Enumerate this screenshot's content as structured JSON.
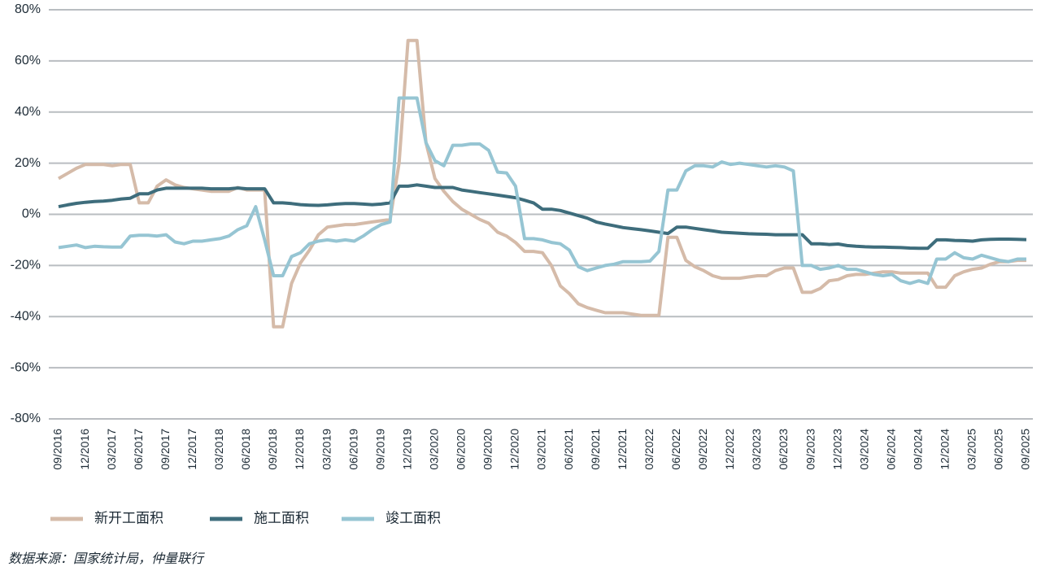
{
  "chart_data": {
    "type": "line",
    "categories": [
      "09/2016",
      null,
      null,
      "12/2016",
      null,
      null,
      "03/2017",
      null,
      null,
      "06/2017",
      null,
      null,
      "09/2017",
      null,
      null,
      "12/2017",
      null,
      null,
      "03/2018",
      null,
      null,
      "06/2018",
      null,
      null,
      "09/2018",
      null,
      null,
      "12/2018",
      null,
      null,
      "03/2019",
      null,
      null,
      "06/2019",
      null,
      null,
      "09/2019",
      null,
      null,
      "12/2019",
      null,
      null,
      "03/2020",
      null,
      null,
      "06/2020",
      null,
      null,
      "09/2020",
      null,
      null,
      "12/2020",
      null,
      null,
      "03/2021",
      null,
      null,
      "06/2021",
      null,
      null,
      "09/2021",
      null,
      null,
      "12/2021",
      null,
      null,
      "03/2022",
      null,
      null,
      "06/2022",
      null,
      null,
      "09/2022",
      null,
      null,
      "12/2022",
      null,
      null,
      "03/2023",
      null,
      null,
      "06/2023",
      null,
      null,
      "09/2023",
      null,
      null,
      "12/2023",
      null,
      null,
      "03/2024",
      null,
      null,
      "06/2024",
      null,
      null,
      "09/2024",
      null,
      null,
      "12/2024",
      null,
      null,
      "03/2025",
      null,
      null,
      "06/2025",
      null,
      null,
      "09/2025"
    ],
    "series": [
      {
        "name": "新开工面积",
        "color": "#d5bba9",
        "values": [
          14,
          16,
          18,
          19.5,
          19.5,
          19.5,
          19,
          19.5,
          19.5,
          4.5,
          4.5,
          11,
          13.5,
          11.5,
          10.5,
          10,
          9.5,
          9,
          9,
          9,
          10.5,
          9.5,
          9.5,
          9.5,
          -44,
          -44,
          -27,
          -19,
          -14,
          -8,
          -5,
          -4.5,
          -4,
          -4,
          -3.5,
          -3,
          -2.5,
          -2,
          20,
          68,
          68,
          28,
          14,
          9,
          5,
          2,
          0,
          -2,
          -3.5,
          -7,
          -8.5,
          -11,
          -14.5,
          -14.5,
          -15,
          -20,
          -28,
          -31,
          -35,
          -36.5,
          -37.5,
          -38.5,
          -38.5,
          -38.5,
          -39,
          -39.5,
          -39.5,
          -39.5,
          -9,
          -9,
          -18,
          -20.5,
          -22,
          -24,
          -25,
          -25,
          -25,
          -24.5,
          -24,
          -24,
          -22,
          -21,
          -21,
          -30.5,
          -30.5,
          -29,
          -26,
          -25.5,
          -24,
          -23.5,
          -23.5,
          -23,
          -22.5,
          -22.5,
          -23,
          -23,
          -23,
          -23,
          -28.5,
          -28.5,
          -24,
          -22.5,
          -21.5,
          -21,
          -19.5,
          -18.5,
          -18.5,
          -18,
          -18
        ]
      },
      {
        "name": "施工面积",
        "color": "#3e6d7c",
        "values": [
          3,
          3.7,
          4.3,
          4.7,
          5,
          5.2,
          5.5,
          6,
          6.3,
          8,
          8,
          9.5,
          10.2,
          10.2,
          10.2,
          10.2,
          10.2,
          10,
          10,
          10,
          10.3,
          10,
          10,
          10,
          4.5,
          4.5,
          4.2,
          3.8,
          3.6,
          3.5,
          3.7,
          4,
          4.2,
          4.2,
          4,
          3.8,
          4,
          4.5,
          11,
          11,
          11.5,
          11,
          10.5,
          10.5,
          10.5,
          9.5,
          9,
          8.5,
          8,
          7.5,
          7,
          6.5,
          5.5,
          4.5,
          2,
          2,
          1.5,
          0.5,
          -0.5,
          -1.5,
          -3,
          -3.8,
          -4.5,
          -5.2,
          -5.6,
          -6,
          -6.5,
          -7,
          -7.5,
          -5,
          -5,
          -5.5,
          -6,
          -6.5,
          -7,
          -7.2,
          -7.4,
          -7.6,
          -7.7,
          -7.8,
          -8,
          -8,
          -8,
          -8,
          -11.5,
          -11.5,
          -11.8,
          -11.6,
          -12.2,
          -12.5,
          -12.7,
          -12.8,
          -12.8,
          -12.9,
          -13,
          -13.2,
          -13.3,
          -13.3,
          -10,
          -10,
          -10.2,
          -10.3,
          -10.5,
          -10,
          -9.8,
          -9.7,
          -9.7,
          -9.8,
          -9.9
        ]
      },
      {
        "name": "竣工面积",
        "color": "#96c5d3",
        "values": [
          -13,
          -12.5,
          -12,
          -13,
          -12.5,
          -12.7,
          -12.8,
          -12.8,
          -8.5,
          -8.2,
          -8.2,
          -8.5,
          -8,
          -10.8,
          -11.5,
          -10.5,
          -10.5,
          -10,
          -9.5,
          -8.5,
          -6,
          -4.5,
          3,
          -10,
          -24,
          -24,
          -16.5,
          -15,
          -11.5,
          -10.5,
          -10,
          -10.5,
          -10,
          -10.5,
          -8.5,
          -6,
          -4,
          -3,
          45.5,
          45.5,
          45.5,
          28,
          21,
          19,
          27,
          27,
          27.5,
          27.5,
          25,
          16.5,
          16.2,
          11,
          -9.5,
          -9.5,
          -10,
          -11,
          -11.5,
          -14,
          -20.5,
          -22,
          -21,
          -20,
          -19.5,
          -18.5,
          -18.5,
          -18.5,
          -18.3,
          -14.5,
          9.5,
          9.5,
          17,
          19,
          19,
          18.5,
          20.5,
          19.5,
          20,
          19.5,
          19,
          18.5,
          19,
          18.5,
          17,
          -20,
          -20,
          -21.5,
          -21,
          -20,
          -21.5,
          -21.5,
          -22.5,
          -23.5,
          -24,
          -23.5,
          -26,
          -27,
          -26,
          -27,
          -17.5,
          -17.5,
          -15,
          -17,
          -17.5,
          -16,
          -17,
          -18,
          -18.5,
          -17.5,
          -17.5
        ]
      }
    ],
    "ylim": [
      -80,
      80
    ],
    "yticks": [
      {
        "value": -80,
        "label": "-80%"
      },
      {
        "value": -60,
        "label": "-60%"
      },
      {
        "value": -40,
        "label": "-40%"
      },
      {
        "value": -20,
        "label": "-20%"
      },
      {
        "value": 0,
        "label": "0%"
      },
      {
        "value": 20,
        "label": "20%"
      },
      {
        "value": 40,
        "label": "40%"
      },
      {
        "value": 60,
        "label": "60%"
      },
      {
        "value": 80,
        "label": "80%"
      }
    ],
    "grid": true,
    "legend": "bottom",
    "source": "数据来源：国家统计局，仲量联行"
  }
}
